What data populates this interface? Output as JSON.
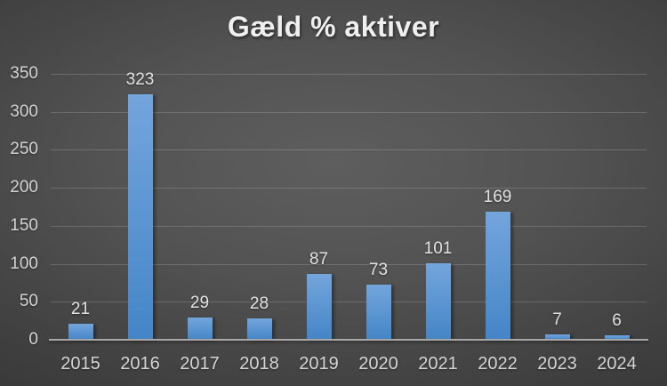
{
  "chart_data": {
    "type": "bar",
    "title": "Gæld % aktiver",
    "categories": [
      "2015",
      "2016",
      "2017",
      "2018",
      "2019",
      "2020",
      "2021",
      "2022",
      "2023",
      "2024"
    ],
    "values": [
      21,
      323,
      29,
      28,
      87,
      73,
      101,
      169,
      7,
      6
    ],
    "xlabel": "",
    "ylabel": "",
    "ylim": [
      0,
      350
    ],
    "yticks": [
      0,
      50,
      100,
      150,
      200,
      250,
      300,
      350
    ],
    "grid": true,
    "legend_position": "none",
    "data_labels": true,
    "colors": {
      "bar_top": "#74a5dc",
      "bar_bottom": "#4485c7",
      "background_center": "#5e5e5e",
      "background_edge": "#262626",
      "gridline": "rgba(255,255,255,0.17)",
      "axis_line": "#a8a8a8",
      "tick_label": "#d4d4d4",
      "data_label": "#e2e2e2",
      "title": "#efefef"
    }
  }
}
